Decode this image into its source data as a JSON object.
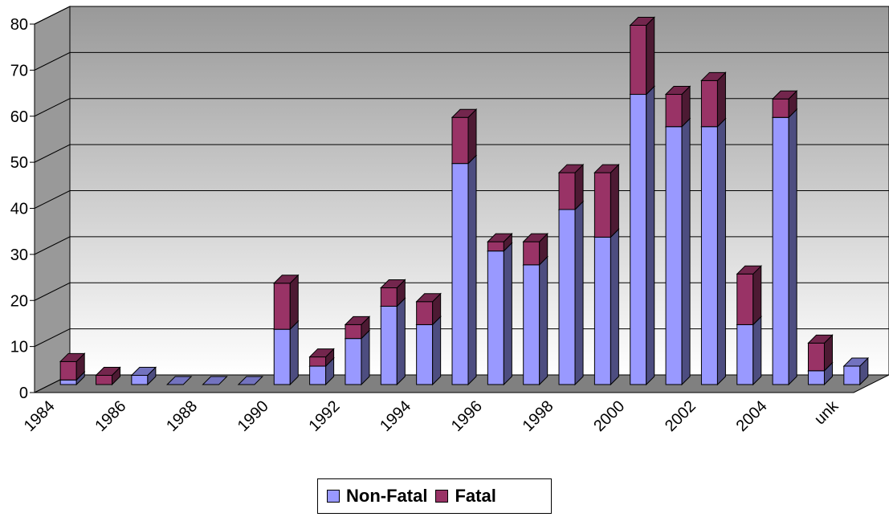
{
  "chart_data": {
    "type": "bar",
    "stacked": true,
    "three_d": true,
    "categories": [
      "1984",
      "1985",
      "1986",
      "1987",
      "1988",
      "1989",
      "1990",
      "1991",
      "1992",
      "1993",
      "1994",
      "1995",
      "1996",
      "1997",
      "1998",
      "1999",
      "2000",
      "2001",
      "2002",
      "2003",
      "2004",
      "2005",
      "unk"
    ],
    "x_tick_labels": [
      "1984",
      "",
      "1986",
      "",
      "1988",
      "",
      "1990",
      "",
      "1992",
      "",
      "1994",
      "",
      "1996",
      "",
      "1998",
      "",
      "2000",
      "",
      "2002",
      "",
      "2004",
      "",
      "unk"
    ],
    "series": [
      {
        "name": "Non-Fatal",
        "color": "#9999FF",
        "values": [
          1,
          0,
          2,
          0,
          0,
          0,
          12,
          4,
          10,
          17,
          13,
          48,
          29,
          26,
          38,
          32,
          63,
          56,
          56,
          13,
          58,
          3,
          4
        ]
      },
      {
        "name": "Fatal",
        "color": "#993366",
        "values": [
          4,
          2,
          0,
          0,
          0,
          0,
          10,
          2,
          3,
          4,
          5,
          10,
          2,
          5,
          8,
          14,
          15,
          7,
          10,
          11,
          4,
          6,
          0
        ]
      }
    ],
    "y_ticks": [
      "0",
      "10",
      "20",
      "30",
      "40",
      "50",
      "60",
      "70",
      "80"
    ],
    "ylim": [
      0,
      80
    ],
    "grid": true,
    "legend_position": "bottom",
    "title": "",
    "xlabel": "",
    "ylabel": ""
  },
  "legend": {
    "non_fatal_label": "Non-Fatal",
    "fatal_label": "Fatal"
  }
}
